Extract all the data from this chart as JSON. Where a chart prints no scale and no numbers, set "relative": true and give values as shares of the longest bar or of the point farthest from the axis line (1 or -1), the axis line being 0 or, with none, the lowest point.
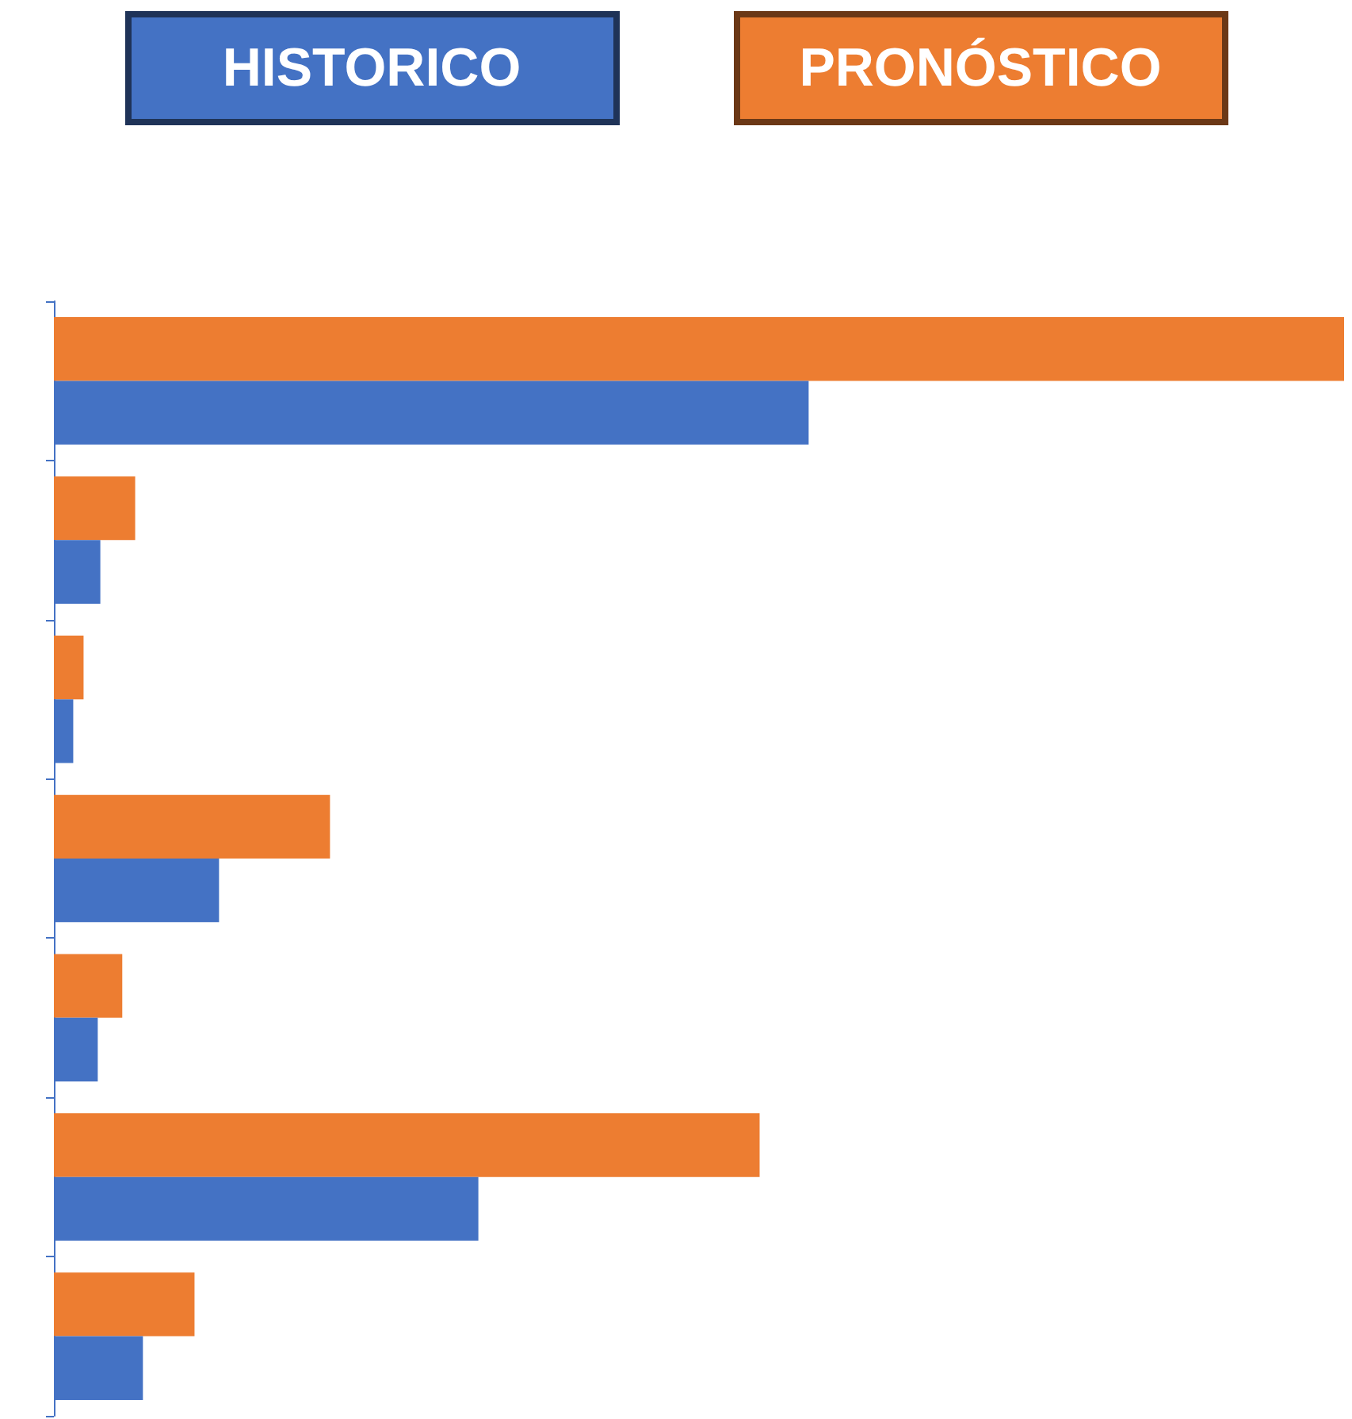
{
  "chart_data": {
    "type": "bar",
    "orientation": "horizontal",
    "relative": true,
    "legend": "top",
    "categories": [
      null,
      null,
      null,
      null,
      null,
      null,
      null
    ],
    "series": [
      {
        "name": "HISTORICO",
        "color": "#4472c4",
        "values": [
          0.585,
          0.036,
          0.015,
          0.128,
          0.034,
          0.329,
          0.069
        ]
      },
      {
        "name": "PRONÓSTICO",
        "color": "#ed7d31",
        "values": [
          1,
          0.063,
          0.023,
          0.214,
          0.053,
          0.547,
          0.109
        ]
      }
    ]
  }
}
